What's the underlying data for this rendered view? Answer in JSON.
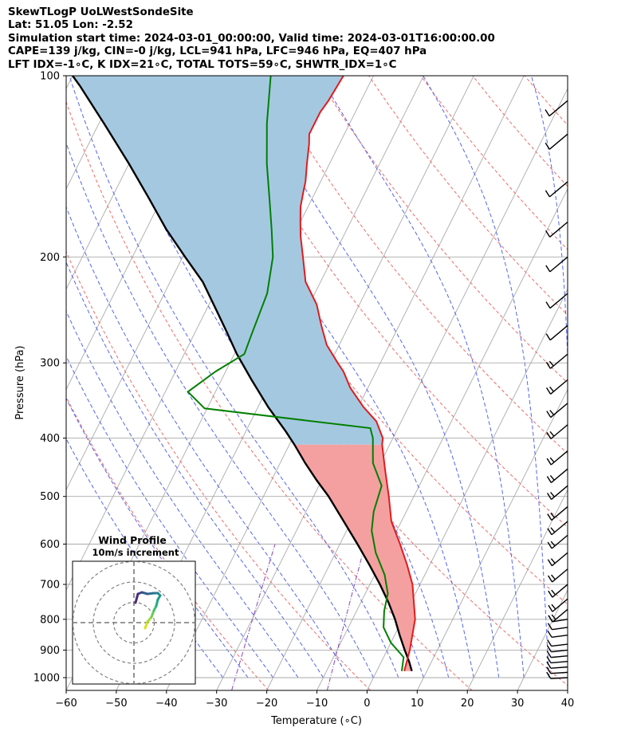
{
  "header": {
    "line1": "SkewTLogP UoLWestSondeSite",
    "line2": "Lat: 51.05   Lon: -2.52",
    "line3": "Simulation start time: 2024-03-01_00:00:00, Valid time: 2024-03-01T16:00:00.00",
    "line4": "CAPE=139 j/kg, CIN=-0 j/kg, LCL=941 hPa, LFC=946 hPa, EQ=407 hPa",
    "line5": "LFT IDX=-1∘C, K IDX=21∘C, TOTAL TOTS=59∘C, SHWTR_IDX=1∘C"
  },
  "chart_data": {
    "type": "line",
    "subtype": "skew-t log-p",
    "xlabel": "Temperature (∘C)",
    "ylabel": "Pressure (hPa)",
    "xlim": [
      -60,
      40
    ],
    "ylim": [
      1050,
      100
    ],
    "x_ticks": [
      -60,
      -50,
      -40,
      -30,
      -20,
      -10,
      0,
      10,
      20,
      30,
      40
    ],
    "y_ticks": [
      100,
      200,
      300,
      400,
      500,
      600,
      700,
      800,
      900,
      1000
    ],
    "y_scale": "log",
    "skew": "temperature lines slanted to the right with height",
    "background_lines": {
      "isotherms": "gray solid",
      "dry_adiabats": "red dashed",
      "moist_adiabats": "blue dashed",
      "mixing_ratio": "purple dash-dot"
    },
    "colors": {
      "temperature": "#e41a1c",
      "dewpoint": "#008000",
      "parcel": "#000000",
      "cape_fill": "#a5c8e1",
      "dry_adiabat": "#f06a6a",
      "moist_adiabat": "#5566ee",
      "mixing_ratio": "#8844bb",
      "isotherm": "#aaaaaa",
      "wind_barbs": "#000000"
    },
    "series": [
      {
        "name": "temperature",
        "points": [
          [
            5.5,
            975
          ],
          [
            4.5,
            900
          ],
          [
            2.5,
            800
          ],
          [
            -1.5,
            700
          ],
          [
            -4.5,
            650
          ],
          [
            -8,
            600
          ],
          [
            -12,
            550
          ],
          [
            -15,
            500
          ],
          [
            -18.5,
            450
          ],
          [
            -21.5,
            410
          ],
          [
            -22,
            400
          ],
          [
            -25,
            375
          ],
          [
            -29,
            355
          ],
          [
            -33.5,
            330
          ],
          [
            -36.5,
            310
          ],
          [
            -38.5,
            300
          ],
          [
            -42.5,
            280
          ],
          [
            -45.5,
            260
          ],
          [
            -48.5,
            240
          ],
          [
            -53,
            220
          ],
          [
            -56,
            200
          ],
          [
            -58.5,
            185
          ],
          [
            -60,
            175
          ],
          [
            -61.5,
            165
          ],
          [
            -62.5,
            155
          ],
          [
            -63,
            150
          ],
          [
            -64.5,
            140
          ],
          [
            -66,
            130
          ],
          [
            -67,
            125
          ],
          [
            -67,
            115
          ],
          [
            -66.5,
            110
          ],
          [
            -66,
            100
          ]
        ]
      },
      {
        "name": "dewpoint",
        "points": [
          [
            5,
            975
          ],
          [
            4,
            925
          ],
          [
            0,
            875
          ],
          [
            -3,
            825
          ],
          [
            -4.5,
            775
          ],
          [
            -5.5,
            725
          ],
          [
            -8,
            675
          ],
          [
            -12,
            620
          ],
          [
            -15,
            570
          ],
          [
            -16.5,
            530
          ],
          [
            -17.5,
            480
          ],
          [
            -21.5,
            440
          ],
          [
            -24,
            400
          ],
          [
            -25.5,
            385
          ],
          [
            -60.5,
            357
          ],
          [
            -65.5,
            335
          ],
          [
            -62,
            310
          ],
          [
            -58,
            290
          ],
          [
            -58.5,
            270
          ],
          [
            -59.5,
            230
          ],
          [
            -62,
            200
          ],
          [
            -65,
            180
          ],
          [
            -68.5,
            160
          ],
          [
            -72.5,
            140
          ],
          [
            -76.5,
            120
          ],
          [
            -80.5,
            100
          ]
        ]
      },
      {
        "name": "parcel",
        "points": [
          [
            7,
            975
          ],
          [
            5.5,
            940
          ],
          [
            3.5,
            900
          ],
          [
            1,
            850
          ],
          [
            -1.5,
            800
          ],
          [
            -4.5,
            750
          ],
          [
            -8,
            700
          ],
          [
            -12,
            650
          ],
          [
            -16.5,
            600
          ],
          [
            -21.5,
            550
          ],
          [
            -27,
            500
          ],
          [
            -31,
            470
          ],
          [
            -35,
            440
          ],
          [
            -39,
            410
          ],
          [
            -42,
            390
          ],
          [
            -48,
            355
          ],
          [
            -54,
            320
          ],
          [
            -59.5,
            290
          ],
          [
            -64,
            265
          ],
          [
            -68,
            245
          ],
          [
            -73.5,
            220
          ],
          [
            -79.5,
            200
          ],
          [
            -86,
            180
          ],
          [
            -92.5,
            160
          ],
          [
            -100,
            140
          ],
          [
            -109,
            120
          ],
          [
            -117.5,
            104
          ],
          [
            -120,
            100
          ]
        ]
      }
    ],
    "wind_barb_pressures": [
      1000,
      980,
      960,
      940,
      920,
      900,
      880,
      850,
      825,
      800,
      770,
      740,
      700,
      660,
      620,
      580,
      550,
      520,
      480,
      450,
      420,
      380,
      350,
      320,
      290,
      260,
      230,
      200,
      175,
      150,
      125,
      110
    ],
    "inset": {
      "title": "Wind Profile",
      "subtitle": "10m/s increment",
      "rings": 3
    }
  }
}
